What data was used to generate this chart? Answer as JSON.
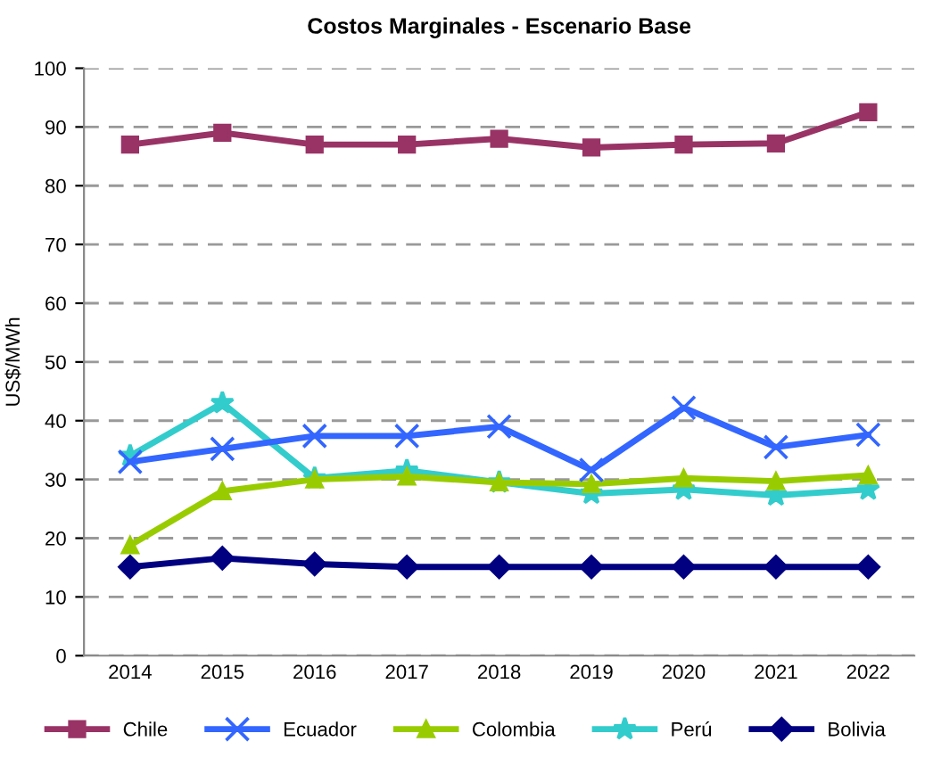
{
  "chart_data": {
    "type": "line",
    "title": "Costos Marginales - Escenario Base",
    "ylabel": "US$/MWh",
    "categories": [
      "2014",
      "2015",
      "2016",
      "2017",
      "2018",
      "2019",
      "2020",
      "2021",
      "2022"
    ],
    "series": [
      {
        "name": "Chile",
        "color": "#993366",
        "marker": "square",
        "values": [
          87,
          89,
          87,
          87,
          88,
          86.5,
          87,
          87.2,
          92.5
        ]
      },
      {
        "name": "Ecuador",
        "color": "#3366ff",
        "marker": "cross",
        "values": [
          33,
          35.2,
          37.4,
          37.4,
          39,
          31.6,
          42.2,
          35.5,
          37.6
        ]
      },
      {
        "name": "Colombia",
        "color": "#99cc00",
        "marker": "triangle",
        "values": [
          18.8,
          28,
          30,
          30.5,
          29.5,
          29.2,
          30.2,
          29.7,
          30.7
        ]
      },
      {
        "name": "Perú",
        "color": "#33cccc",
        "marker": "star",
        "values": [
          34,
          43,
          30.2,
          31.5,
          29.5,
          27.6,
          28.3,
          27.3,
          28.3
        ]
      },
      {
        "name": "Bolivia",
        "color": "#000080",
        "marker": "diamond",
        "values": [
          15.1,
          16.6,
          15.6,
          15.1,
          15.1,
          15.1,
          15.1,
          15.1,
          15.1
        ]
      }
    ],
    "ylim": [
      0,
      100
    ],
    "yticks": [
      0,
      10,
      20,
      30,
      40,
      50,
      60,
      70,
      80,
      90,
      100
    ],
    "grid": "y",
    "legend": "bottom",
    "line_style": "solid"
  }
}
